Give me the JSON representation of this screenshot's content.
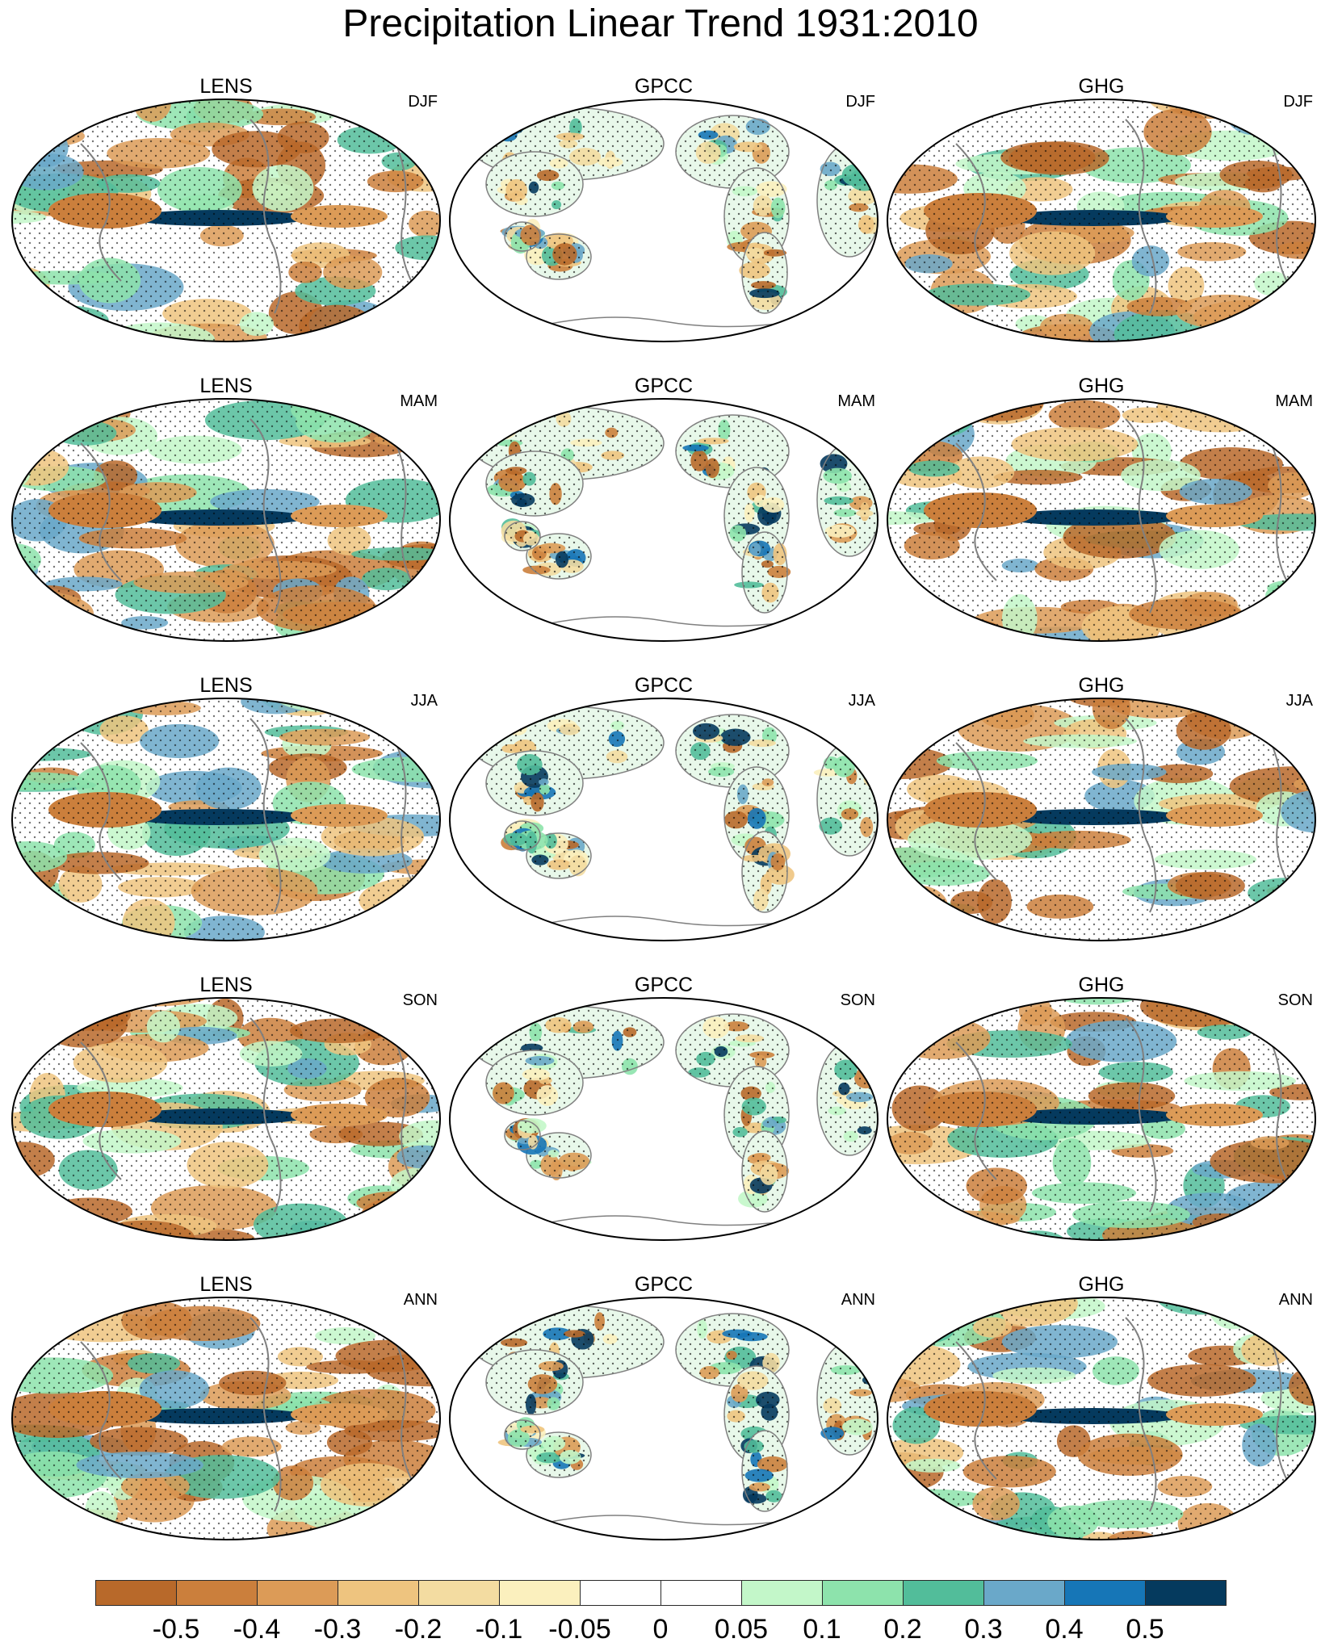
{
  "title": "Precipitation Linear Trend 1931:2010",
  "columns": [
    "LENS",
    "GPCC",
    "GHG"
  ],
  "seasons": [
    "DJF",
    "MAM",
    "JJA",
    "SON",
    "ANN"
  ],
  "panels": [
    {
      "dataset": "LENS",
      "season": "DJF"
    },
    {
      "dataset": "GPCC",
      "season": "DJF"
    },
    {
      "dataset": "GHG",
      "season": "DJF"
    },
    {
      "dataset": "LENS",
      "season": "MAM"
    },
    {
      "dataset": "GPCC",
      "season": "MAM"
    },
    {
      "dataset": "GHG",
      "season": "MAM"
    },
    {
      "dataset": "LENS",
      "season": "JJA"
    },
    {
      "dataset": "GPCC",
      "season": "JJA"
    },
    {
      "dataset": "GHG",
      "season": "JJA"
    },
    {
      "dataset": "LENS",
      "season": "SON"
    },
    {
      "dataset": "GPCC",
      "season": "SON"
    },
    {
      "dataset": "GHG",
      "season": "SON"
    },
    {
      "dataset": "LENS",
      "season": "ANN"
    },
    {
      "dataset": "GPCC",
      "season": "ANN"
    },
    {
      "dataset": "GHG",
      "season": "ANN"
    }
  ],
  "colorbar": {
    "colors": [
      "#b8692a",
      "#cb7f3c",
      "#dc9b57",
      "#eec47f",
      "#f3dca1",
      "#fbf0be",
      "#ffffff",
      "#ffffff",
      "#c3f7c9",
      "#8de3ac",
      "#52bd9a",
      "#6aa8c9",
      "#1676b7",
      "#053a5e"
    ],
    "labels": [
      "-0.5",
      "-0.4",
      "-0.3",
      "-0.2",
      "-0.1",
      "-0.05",
      "0",
      "0.05",
      "0.1",
      "0.2",
      "0.3",
      "0.4",
      "0.5"
    ]
  },
  "colors": {
    "coastline": "#808080",
    "map_border": "#000000",
    "stipple": "#000000"
  }
}
